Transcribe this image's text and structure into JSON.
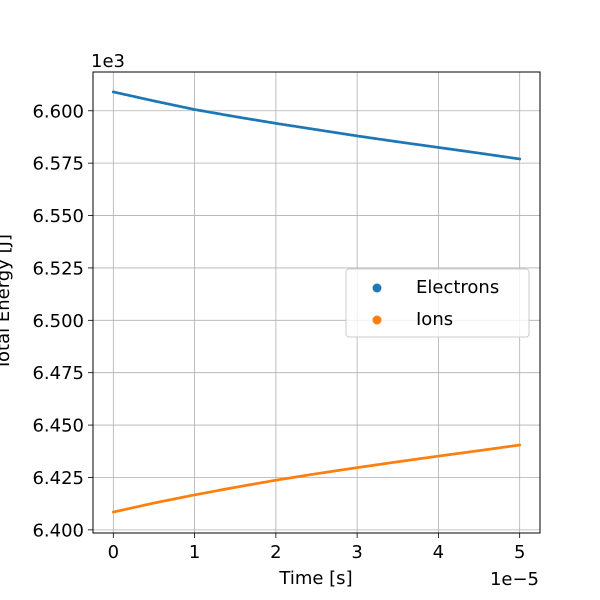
{
  "chart_data": {
    "type": "scatter",
    "xlabel": "Time [s]",
    "ylabel": "Total Energy [J]",
    "x_offset_text": "1e−5",
    "y_offset_text": "1e3",
    "xlim": [
      -0.25,
      5.25
    ],
    "ylim": [
      6.3985,
      6.6185
    ],
    "x_ticks": [
      0,
      1,
      2,
      3,
      4,
      5
    ],
    "x_tick_labels": [
      "0",
      "1",
      "2",
      "3",
      "4",
      "5"
    ],
    "y_ticks": [
      6.4,
      6.425,
      6.45,
      6.475,
      6.5,
      6.525,
      6.55,
      6.575,
      6.6
    ],
    "y_tick_labels": [
      "6.400",
      "6.425",
      "6.450",
      "6.475",
      "6.500",
      "6.525",
      "6.550",
      "6.575",
      "6.600"
    ],
    "grid": true,
    "legend_position": "center-right",
    "series": [
      {
        "name": "Electrons",
        "color": "#1f77b4",
        "x": [
          0,
          0.5,
          1,
          1.5,
          2,
          2.5,
          3,
          3.5,
          4,
          4.5,
          5
        ],
        "y": [
          6.609,
          6.6047,
          6.6006,
          6.5972,
          6.594,
          6.591,
          6.588,
          6.5852,
          6.5825,
          6.5798,
          6.577
        ]
      },
      {
        "name": "Ions",
        "color": "#ff7f0e",
        "x": [
          0,
          0.5,
          1,
          1.5,
          2,
          2.5,
          3,
          3.5,
          4,
          4.5,
          5
        ],
        "y": [
          6.4085,
          6.4128,
          6.4167,
          6.4203,
          6.4237,
          6.4268,
          6.4297,
          6.4325,
          6.4352,
          6.4378,
          6.4405
        ]
      }
    ]
  }
}
